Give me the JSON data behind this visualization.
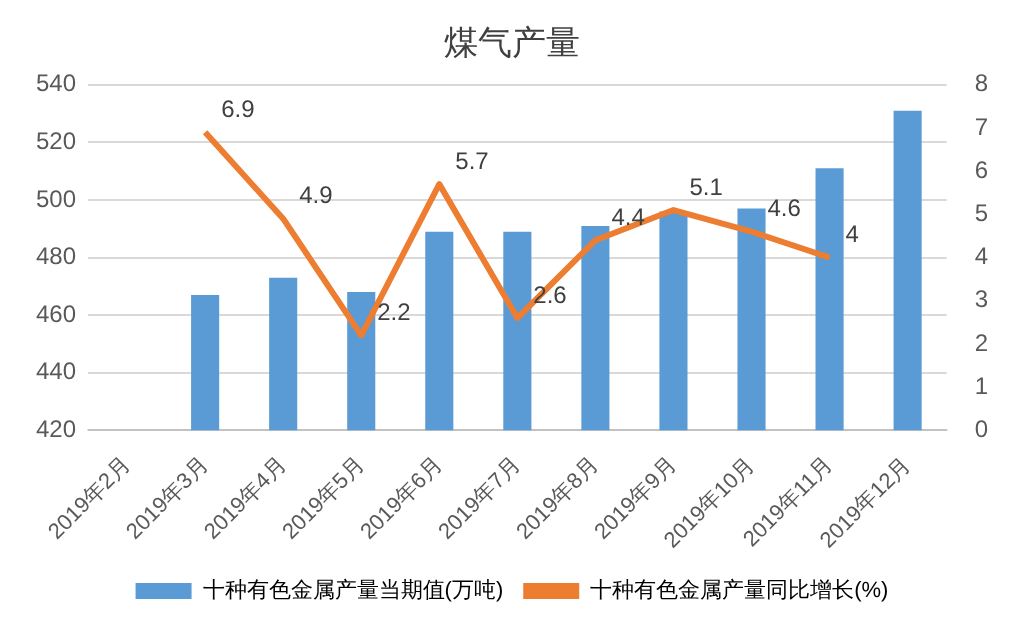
{
  "chart_data": {
    "type": "bar",
    "title": "煤气产量",
    "categories": [
      "2019年2月",
      "2019年3月",
      "2019年4月",
      "2019年5月",
      "2019年6月",
      "2019年7月",
      "2019年8月",
      "2019年9月",
      "2019年10月",
      "2019年11月",
      "2019年12月"
    ],
    "series": [
      {
        "name": "十种有色金属产量当期值(万吨)",
        "color": "#5b9bd5",
        "values": [
          null,
          467,
          473,
          468,
          489,
          489,
          491,
          496,
          497,
          511,
          531
        ]
      },
      {
        "name": "十种有色金属产量同比增长(%)",
        "type": "line",
        "axis": "y2",
        "color": "#ed7d31",
        "marker": "none",
        "values": [
          null,
          6.9,
          4.9,
          2.2,
          5.7,
          2.6,
          4.4,
          5.1,
          4.6,
          4,
          null
        ],
        "value_labels": [
          null,
          "6.9",
          "4.9",
          "2.2",
          "5.7",
          "2.6",
          "4.4",
          "5.1",
          "4.6",
          "4",
          null
        ]
      }
    ],
    "ylim": [
      420,
      540
    ],
    "yticks": [
      420,
      440,
      460,
      480,
      500,
      520,
      540
    ],
    "y2lim": [
      0,
      8
    ],
    "y2ticks": [
      0,
      1,
      2,
      3,
      4,
      5,
      6,
      7,
      8
    ],
    "grid": "y",
    "legend": "bottom"
  }
}
